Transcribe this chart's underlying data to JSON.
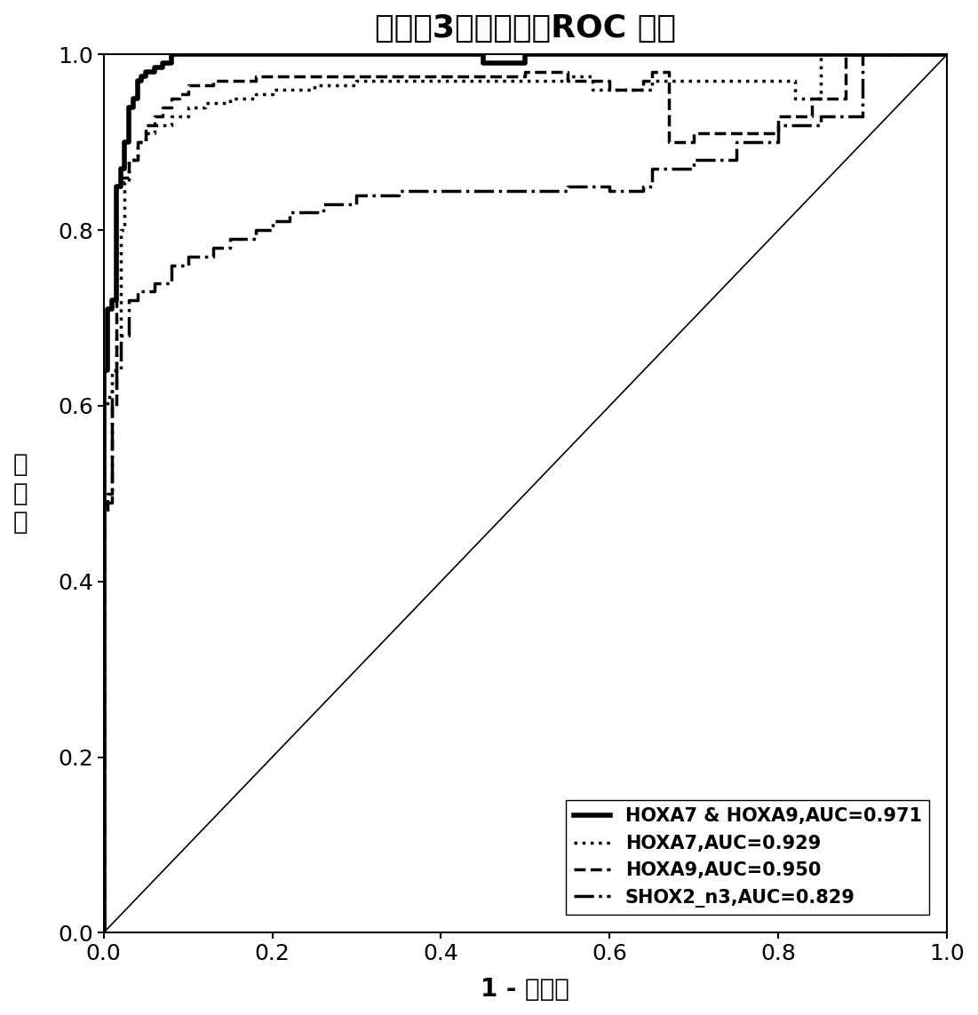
{
  "title": "痰液中3个标志物的ROC 曲线",
  "xlabel": "1 - 特异性",
  "ylabel_chars": [
    "敏",
    "感",
    "度"
  ],
  "title_fontsize": 26,
  "axis_fontsize": 20,
  "tick_fontsize": 18,
  "legend_fontsize": 15,
  "background_color": "#ffffff",
  "hoxa7_hoxa9": {
    "x": [
      0.0,
      0.0,
      0.005,
      0.005,
      0.01,
      0.01,
      0.015,
      0.015,
      0.02,
      0.02,
      0.025,
      0.025,
      0.03,
      0.03,
      0.035,
      0.035,
      0.04,
      0.04,
      0.045,
      0.045,
      0.05,
      0.05,
      0.06,
      0.06,
      0.07,
      0.07,
      0.08,
      0.08,
      0.45,
      0.45,
      0.5,
      0.5,
      1.0
    ],
    "y": [
      0.0,
      0.64,
      0.64,
      0.71,
      0.71,
      0.72,
      0.72,
      0.85,
      0.85,
      0.87,
      0.87,
      0.9,
      0.9,
      0.94,
      0.94,
      0.95,
      0.95,
      0.97,
      0.97,
      0.975,
      0.975,
      0.98,
      0.98,
      0.985,
      0.985,
      0.99,
      0.99,
      1.0,
      1.0,
      0.99,
      0.99,
      1.0,
      1.0
    ],
    "label": "HOXA7 & HOXA9,AUC=0.971",
    "linestyle": "-",
    "linewidth": 4.0,
    "color": "#000000"
  },
  "hoxa7": {
    "x": [
      0.0,
      0.0,
      0.005,
      0.005,
      0.01,
      0.01,
      0.015,
      0.015,
      0.02,
      0.02,
      0.025,
      0.025,
      0.03,
      0.03,
      0.04,
      0.04,
      0.05,
      0.05,
      0.06,
      0.06,
      0.08,
      0.08,
      0.1,
      0.1,
      0.12,
      0.12,
      0.15,
      0.15,
      0.18,
      0.18,
      0.2,
      0.2,
      0.25,
      0.25,
      0.3,
      0.3,
      0.55,
      0.55,
      0.58,
      0.58,
      0.65,
      0.65,
      0.82,
      0.82,
      0.85,
      0.85,
      1.0
    ],
    "y": [
      0.0,
      0.6,
      0.6,
      0.61,
      0.61,
      0.64,
      0.64,
      0.68,
      0.68,
      0.8,
      0.8,
      0.855,
      0.855,
      0.88,
      0.88,
      0.9,
      0.9,
      0.91,
      0.91,
      0.92,
      0.92,
      0.93,
      0.93,
      0.94,
      0.94,
      0.945,
      0.945,
      0.95,
      0.95,
      0.955,
      0.955,
      0.96,
      0.96,
      0.965,
      0.965,
      0.97,
      0.97,
      0.975,
      0.975,
      0.96,
      0.96,
      0.97,
      0.97,
      0.95,
      0.95,
      1.0,
      1.0
    ],
    "label": "HOXA7,AUC=0.929",
    "linestyle": "dotted",
    "linewidth": 2.5,
    "color": "#000000"
  },
  "hoxa9": {
    "x": [
      0.0,
      0.0,
      0.005,
      0.005,
      0.01,
      0.01,
      0.015,
      0.015,
      0.02,
      0.02,
      0.03,
      0.03,
      0.04,
      0.04,
      0.05,
      0.05,
      0.06,
      0.06,
      0.07,
      0.07,
      0.08,
      0.08,
      0.09,
      0.09,
      0.1,
      0.1,
      0.13,
      0.13,
      0.18,
      0.18,
      0.5,
      0.5,
      0.55,
      0.55,
      0.6,
      0.6,
      0.64,
      0.64,
      0.65,
      0.65,
      0.67,
      0.67,
      0.7,
      0.7,
      0.8,
      0.8,
      0.84,
      0.84,
      0.88,
      0.88,
      1.0
    ],
    "y": [
      0.0,
      0.49,
      0.49,
      0.5,
      0.5,
      0.6,
      0.6,
      0.85,
      0.85,
      0.86,
      0.86,
      0.88,
      0.88,
      0.9,
      0.9,
      0.92,
      0.92,
      0.93,
      0.93,
      0.94,
      0.94,
      0.95,
      0.95,
      0.955,
      0.955,
      0.965,
      0.965,
      0.97,
      0.97,
      0.975,
      0.975,
      0.98,
      0.98,
      0.97,
      0.97,
      0.96,
      0.96,
      0.97,
      0.97,
      0.98,
      0.98,
      0.9,
      0.9,
      0.91,
      0.91,
      0.93,
      0.93,
      0.95,
      0.95,
      1.0,
      1.0
    ],
    "label": "HOXA9,AUC=0.950",
    "linestyle": "--",
    "linewidth": 2.5,
    "color": "#000000"
  },
  "shox2": {
    "x": [
      0.0,
      0.0,
      0.005,
      0.005,
      0.01,
      0.01,
      0.015,
      0.015,
      0.02,
      0.02,
      0.03,
      0.03,
      0.04,
      0.04,
      0.06,
      0.06,
      0.08,
      0.08,
      0.1,
      0.1,
      0.13,
      0.13,
      0.15,
      0.15,
      0.18,
      0.18,
      0.2,
      0.2,
      0.22,
      0.22,
      0.26,
      0.26,
      0.3,
      0.3,
      0.35,
      0.35,
      0.55,
      0.55,
      0.6,
      0.6,
      0.64,
      0.64,
      0.65,
      0.65,
      0.7,
      0.7,
      0.75,
      0.75,
      0.8,
      0.8,
      0.85,
      0.85,
      0.9,
      0.9,
      1.0
    ],
    "y": [
      0.0,
      0.48,
      0.48,
      0.49,
      0.49,
      0.62,
      0.62,
      0.64,
      0.64,
      0.68,
      0.68,
      0.72,
      0.72,
      0.73,
      0.73,
      0.74,
      0.74,
      0.76,
      0.76,
      0.77,
      0.77,
      0.78,
      0.78,
      0.79,
      0.79,
      0.8,
      0.8,
      0.81,
      0.81,
      0.82,
      0.82,
      0.83,
      0.83,
      0.84,
      0.84,
      0.845,
      0.845,
      0.85,
      0.85,
      0.845,
      0.845,
      0.85,
      0.85,
      0.87,
      0.87,
      0.88,
      0.88,
      0.9,
      0.9,
      0.92,
      0.92,
      0.93,
      0.93,
      1.0,
      1.0
    ],
    "label": "SHOX2_n3,AUC=0.829",
    "linestyle": "-.",
    "linewidth": 2.5,
    "color": "#000000"
  },
  "diagonal": {
    "x": [
      0.0,
      1.0
    ],
    "y": [
      0.0,
      1.0
    ],
    "color": "#000000",
    "linewidth": 1.2,
    "linestyle": "-"
  }
}
